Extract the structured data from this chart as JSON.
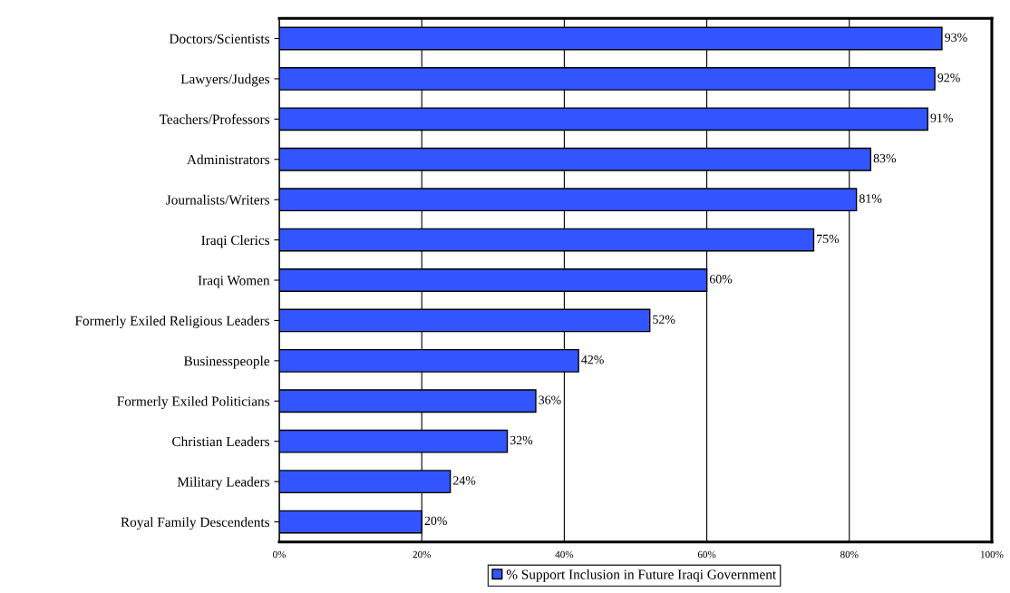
{
  "chart_data": {
    "type": "bar",
    "orientation": "horizontal",
    "categories": [
      "Doctors/Scientists",
      "Lawyers/Judges",
      "Teachers/Professors",
      "Administrators",
      "Journalists/Writers",
      "Iraqi Clerics",
      "Iraqi Women",
      "Formerly Exiled Religious Leaders",
      "Businesspeople",
      "Formerly Exiled Politicians",
      "Christian Leaders",
      "Military Leaders",
      "Royal Family Descendents"
    ],
    "series": [
      {
        "name": "% Support Inclusion in Future Iraqi Government",
        "color": "#3355ff",
        "values": [
          93,
          92,
          91,
          83,
          81,
          75,
          60,
          52,
          42,
          36,
          32,
          24,
          20
        ],
        "value_labels": [
          "93%",
          "92%",
          "91%",
          "83%",
          "81%",
          "75%",
          "60%",
          "52%",
          "42%",
          "36%",
          "32%",
          "24%",
          "20%"
        ]
      }
    ],
    "xlim": [
      0,
      100
    ],
    "xticks": [
      {
        "value": 0,
        "label": "0%"
      },
      {
        "value": 20,
        "label": "20%"
      },
      {
        "value": 40,
        "label": "40%"
      },
      {
        "value": 60,
        "label": "60%"
      },
      {
        "value": 80,
        "label": "80%"
      },
      {
        "value": 100,
        "label": "100%"
      }
    ],
    "grid": "x",
    "legend": "bottom"
  }
}
